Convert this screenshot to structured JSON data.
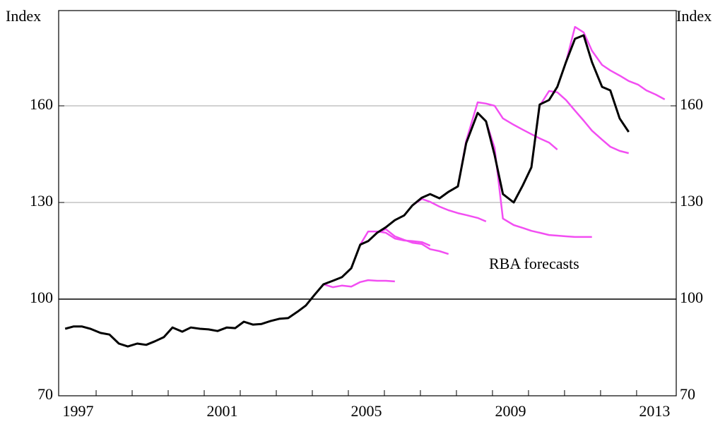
{
  "chart_data": {
    "type": "line",
    "ylabel": "Index",
    "y2label": "Index",
    "xlim": [
      1996.96,
      2014.1
    ],
    "xticks": [
      {
        "value": 1997.5,
        "label": "1997"
      },
      {
        "value": 2001.5,
        "label": "2001"
      },
      {
        "value": 2005.5,
        "label": "2005"
      },
      {
        "value": 2009.5,
        "label": "2009"
      },
      {
        "value": 2013.5,
        "label": "2013"
      }
    ],
    "x_minor_ticks": [
      1998,
      1999,
      2000,
      2001,
      2002,
      2003,
      2004,
      2005,
      2006,
      2007,
      2008,
      2009,
      2010,
      2011,
      2012,
      2013
    ],
    "ylim": [
      70,
      190
    ],
    "yticks": [
      70,
      100,
      130,
      160
    ],
    "y2lim": [
      70,
      190
    ],
    "y2ticks": [
      70,
      100,
      130,
      160
    ],
    "grid": true,
    "reference_line": 100,
    "annotations": [
      {
        "text": "RBA forecasts",
        "color": "#f24ef2"
      }
    ],
    "series": [
      {
        "color": "#000000",
        "x": [
          1997.14,
          1997.37,
          1997.61,
          1997.84,
          1998.12,
          1998.37,
          1998.63,
          1998.88,
          1999.14,
          1999.39,
          1999.63,
          1999.88,
          2000.12,
          2000.39,
          2000.63,
          2000.88,
          2001.12,
          2001.37,
          2001.63,
          2001.86,
          2002.1,
          2002.35,
          2002.59,
          2002.84,
          2003.08,
          2003.33,
          2003.59,
          2003.82,
          2004.06,
          2004.31,
          2004.57,
          2004.82,
          2005.08,
          2005.33,
          2005.55,
          2005.8,
          2006.04,
          2006.29,
          2006.55,
          2006.78,
          2007.04,
          2007.27,
          2007.53,
          2007.78,
          2008.04,
          2008.27,
          2008.59,
          2008.82,
          2009.06,
          2009.29,
          2009.59,
          2009.84,
          2010.08,
          2010.31,
          2010.57,
          2010.8,
          2011.04,
          2011.29,
          2011.53,
          2011.76,
          2012.04,
          2012.27,
          2012.53,
          2012.78
        ],
        "values": [
          90.8,
          91.5,
          91.5,
          90.8,
          89.5,
          89.0,
          86.2,
          85.3,
          86.2,
          85.8,
          86.9,
          88.2,
          91.2,
          89.9,
          91.2,
          90.8,
          90.6,
          90.1,
          91.2,
          91.0,
          93.0,
          92.1,
          92.3,
          93.2,
          93.9,
          94.1,
          96.1,
          98.0,
          101.3,
          104.6,
          105.7,
          106.8,
          109.6,
          116.9,
          118.0,
          120.6,
          122.3,
          124.5,
          126.0,
          129.1,
          131.5,
          132.6,
          131.3,
          133.3,
          135.0,
          148.4,
          157.8,
          155.2,
          144.7,
          132.6,
          130.0,
          135.3,
          140.9,
          160.4,
          161.8,
          165.9,
          173.6,
          180.8,
          181.9,
          173.6,
          165.9,
          164.8,
          156.1,
          151.9
        ]
      },
      {
        "color": "#f24ef2",
        "x": [
          2004.31,
          2004.57,
          2004.82,
          2005.08,
          2005.33,
          2005.55,
          2005.8,
          2006.04,
          2006.29
        ],
        "values": [
          104.6,
          103.7,
          104.2,
          103.9,
          105.3,
          105.9,
          105.7,
          105.7,
          105.5
        ]
      },
      {
        "color": "#f24ef2",
        "x": [
          2005.08,
          2005.33,
          2005.55,
          2005.8,
          2006.04,
          2006.29,
          2006.55,
          2006.78,
          2007.04,
          2007.27
        ],
        "values": [
          109.6,
          116.9,
          121.0,
          121.0,
          120.6,
          118.8,
          118.2,
          118.0,
          117.7,
          116.6
        ]
      },
      {
        "color": "#f24ef2",
        "x": [
          2005.8,
          2006.04,
          2006.29,
          2006.55,
          2006.78,
          2007.04,
          2007.27,
          2007.53,
          2007.78
        ],
        "values": [
          120.6,
          121.7,
          119.5,
          118.4,
          117.5,
          117.1,
          115.5,
          114.9,
          114.0
        ]
      },
      {
        "color": "#f24ef2",
        "x": [
          2006.78,
          2007.04,
          2007.27,
          2007.53,
          2007.78,
          2008.04,
          2008.27,
          2008.59,
          2008.82
        ],
        "values": [
          129.1,
          131.1,
          130.2,
          128.7,
          127.6,
          126.7,
          126.1,
          125.2,
          124.1
        ]
      },
      {
        "color": "#f24ef2",
        "x": [
          2008.04,
          2008.27,
          2008.59,
          2008.82,
          2009.06,
          2009.29,
          2009.59,
          2009.84,
          2010.08,
          2010.31,
          2010.57,
          2010.8
        ],
        "values": [
          135.0,
          149.1,
          161.1,
          160.7,
          160.0,
          156.1,
          154.1,
          152.6,
          151.2,
          149.9,
          148.6,
          146.4
        ]
      },
      {
        "color": "#f24ef2",
        "x": [
          2008.59,
          2008.82,
          2009.06,
          2009.29,
          2009.59,
          2009.84,
          2010.08,
          2010.31,
          2010.57,
          2010.8,
          2011.04,
          2011.29,
          2011.53,
          2011.76
        ],
        "values": [
          157.8,
          155.2,
          146.9,
          125.0,
          123.0,
          122.1,
          121.2,
          120.6,
          119.9,
          119.7,
          119.5,
          119.3,
          119.3,
          119.3
        ]
      },
      {
        "color": "#f24ef2",
        "x": [
          2010.08,
          2010.31,
          2010.57,
          2010.8,
          2011.04,
          2011.29,
          2011.53,
          2011.76,
          2012.04,
          2012.27,
          2012.53,
          2012.78
        ],
        "values": [
          140.9,
          160.0,
          164.6,
          164.2,
          161.8,
          158.5,
          155.4,
          152.3,
          149.5,
          147.3,
          146.0,
          145.3
        ]
      },
      {
        "color": "#f24ef2",
        "x": [
          2011.04,
          2011.29,
          2011.53,
          2011.76,
          2012.04,
          2012.27,
          2012.53,
          2012.78,
          2013.04,
          2013.27,
          2013.53,
          2013.78
        ],
        "values": [
          173.6,
          184.5,
          182.8,
          177.1,
          172.7,
          171.0,
          169.4,
          167.7,
          166.6,
          164.8,
          163.5,
          162.0
        ]
      }
    ]
  }
}
